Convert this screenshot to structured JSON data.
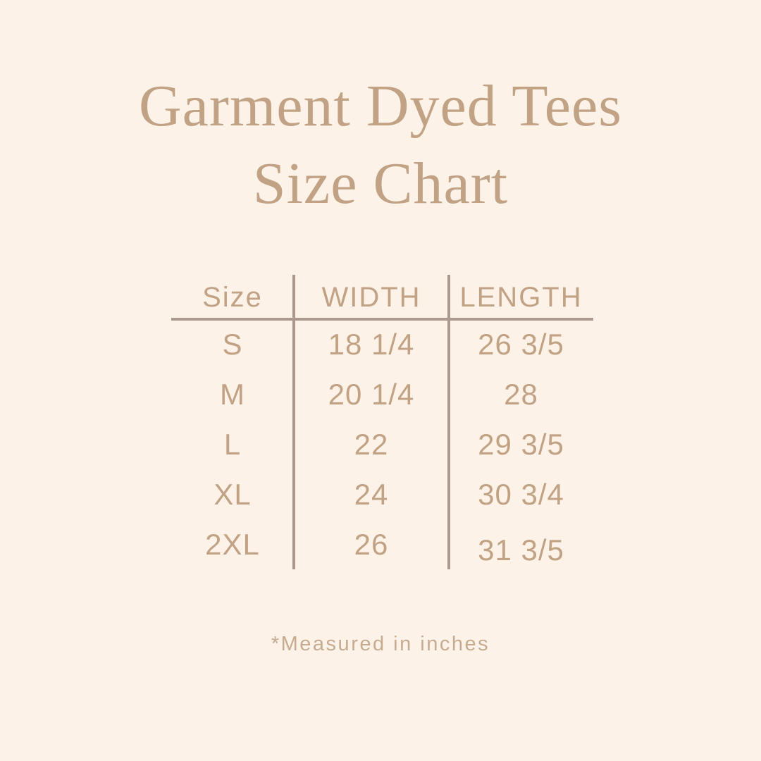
{
  "header": {
    "title_line1": "Garment Dyed Tees",
    "title_line2": "Size Chart"
  },
  "footer": {
    "note": "*Measured in inches"
  },
  "colors": {
    "background": "#FCF2E8",
    "text": "#C1A284",
    "subtext": "#C7AB90",
    "line": "#AB998E"
  },
  "chart_data": {
    "type": "table",
    "title": "Garment Dyed Tees Size Chart",
    "columns": [
      "Size",
      "WIDTH",
      "LENGTH"
    ],
    "rows": [
      [
        "S",
        "18 1/4",
        "26 3/5"
      ],
      [
        "M",
        "20 1/4",
        "28"
      ],
      [
        "L",
        "22",
        "29 3/5"
      ],
      [
        "XL",
        "24",
        "30 3/4"
      ],
      [
        "2XL",
        "26",
        "31 3/5"
      ]
    ],
    "note": "*Measured in inches",
    "layout_hints": {
      "column_dividers": "vertical rules between columns",
      "header_divider": "horizontal rule under header row"
    }
  }
}
